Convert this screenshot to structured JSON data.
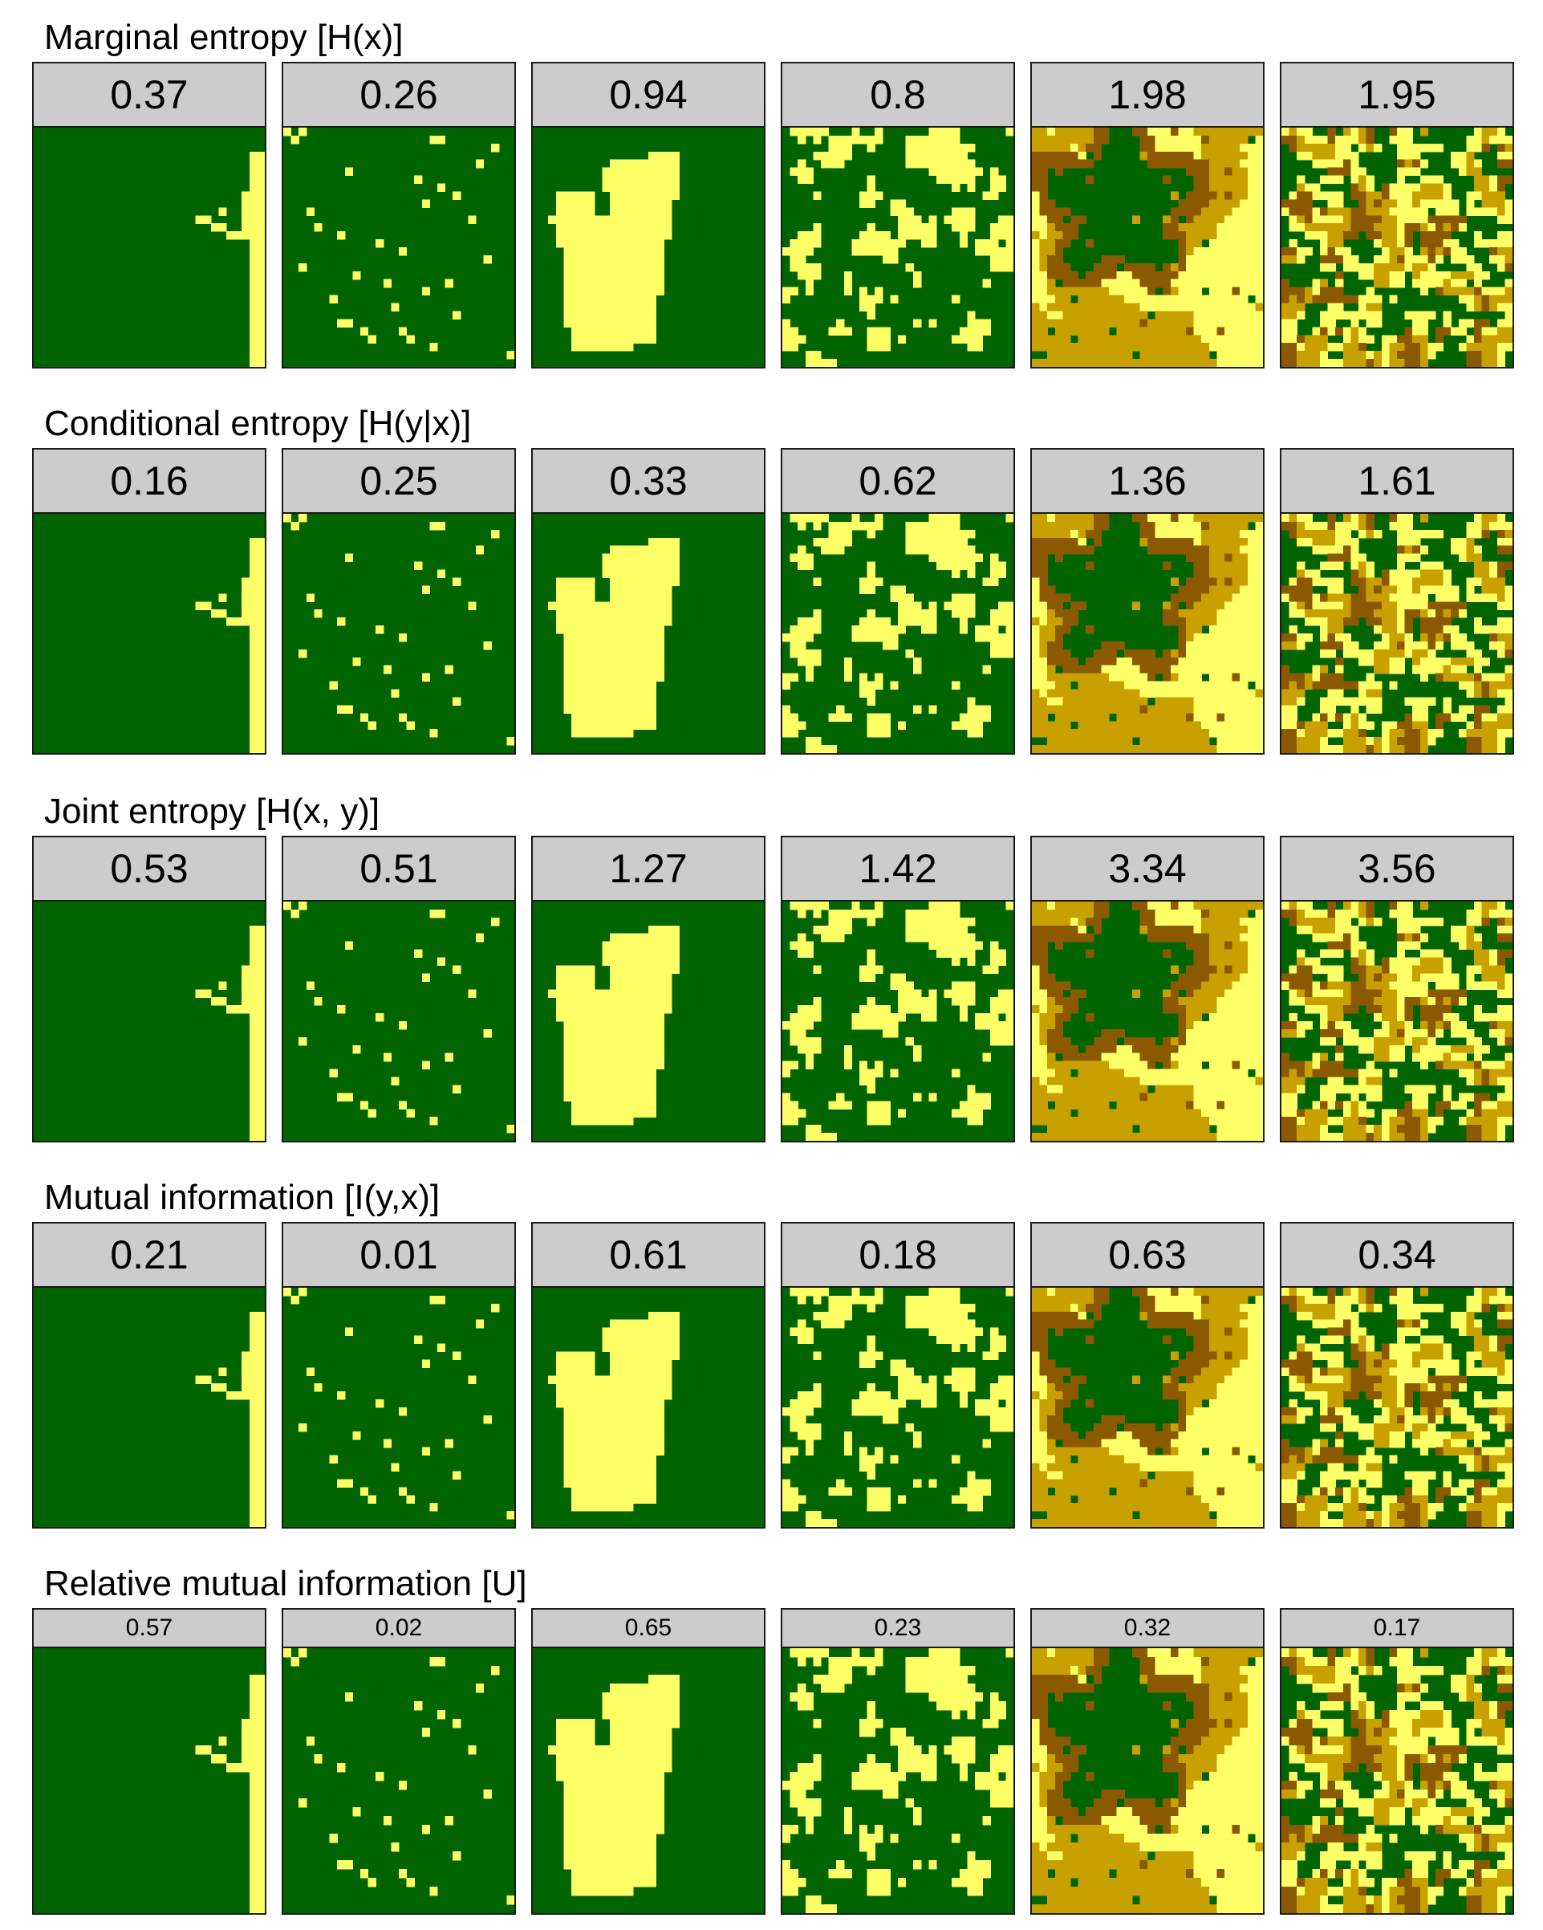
{
  "colors": {
    "green": "#006400",
    "yellow": "#ffff66",
    "tan": "#c8a000",
    "brown": "#8b5a00",
    "strip": "#cccccc"
  },
  "sections": [
    {
      "title": "Marginal entropy [H(x)]",
      "values": [
        "0.37",
        "0.26",
        "0.94",
        "0.8",
        "1.98",
        "1.95"
      ]
    },
    {
      "title": "Conditional entropy [H(y|x)]",
      "values": [
        "0.16",
        "0.25",
        "0.33",
        "0.62",
        "1.36",
        "1.61"
      ]
    },
    {
      "title": "Joint entropy [H(x, y)]",
      "values": [
        "0.53",
        "0.51",
        "1.27",
        "1.42",
        "3.34",
        "3.56"
      ]
    },
    {
      "title": "Mutual information [I(y,x)]",
      "values": [
        "0.21",
        "0.01",
        "0.61",
        "0.18",
        "0.63",
        "0.34"
      ]
    },
    {
      "title": "Relative mutual information [U]",
      "values": [
        "0.57",
        "0.02",
        "0.65",
        "0.23",
        "0.32",
        "0.17"
      ]
    }
  ]
}
